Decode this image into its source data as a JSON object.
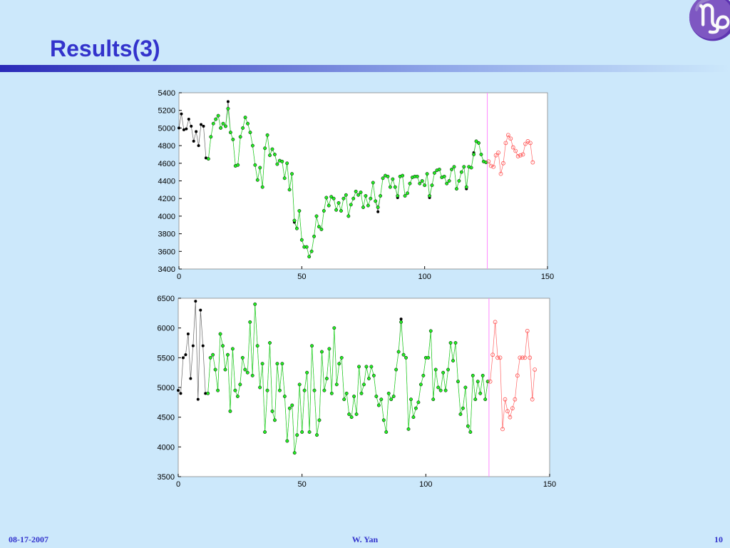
{
  "header": {
    "title": "Results(3)",
    "symbol": "♑"
  },
  "chart_data": [
    {
      "type": "line",
      "xlim": [
        0,
        150
      ],
      "xticks": [
        0,
        50,
        100,
        150
      ],
      "ylim": [
        3400,
        5400
      ],
      "yticks": [
        3400,
        3600,
        3800,
        4000,
        4200,
        4400,
        4600,
        4800,
        5000,
        5200,
        5400
      ],
      "vline": 125.5,
      "vline_color": "#ff88ff",
      "series": [
        {
          "color": "#000000",
          "marker": "dot",
          "x": [
            0,
            1,
            2,
            3,
            4,
            5,
            6,
            7,
            8,
            9,
            10,
            11,
            12,
            13,
            14,
            15,
            16,
            17,
            18,
            19,
            20,
            21,
            22,
            23,
            24,
            25,
            26,
            27,
            28,
            29,
            30,
            31,
            32,
            33,
            34,
            35,
            36,
            37,
            38,
            39,
            40,
            41,
            42,
            43,
            44,
            45,
            46,
            47,
            48,
            49,
            50,
            51,
            52,
            53,
            54,
            55,
            56,
            57,
            58,
            59,
            60,
            61,
            62,
            63,
            64,
            65,
            66,
            67,
            68,
            69,
            70,
            71,
            72,
            73,
            74,
            75,
            76,
            77,
            78,
            79,
            80,
            81,
            82,
            83,
            84,
            85,
            86,
            87,
            88,
            89,
            90,
            91,
            92,
            93,
            94,
            95,
            96,
            97,
            98,
            99,
            100,
            101,
            102,
            103,
            104,
            105,
            106,
            107,
            108,
            109,
            110,
            111,
            112,
            113,
            114,
            115,
            116,
            117,
            118,
            119,
            120,
            121,
            122,
            123,
            124,
            125
          ],
          "values": [
            5000,
            5160,
            4980,
            4990,
            5100,
            5020,
            4850,
            4960,
            4800,
            5040,
            5020,
            4660,
            4650,
            4900,
            5050,
            5100,
            5140,
            5000,
            5050,
            5020,
            5300,
            4950,
            4870,
            4570,
            4580,
            4900,
            5000,
            5120,
            5050,
            4950,
            4800,
            4580,
            4410,
            4550,
            4330,
            4770,
            4920,
            4690,
            4760,
            4700,
            4590,
            4630,
            4620,
            4430,
            4600,
            4300,
            4480,
            3930,
            3860,
            4060,
            3730,
            3650,
            3650,
            3540,
            3600,
            3770,
            4000,
            3880,
            3850,
            4060,
            4210,
            4120,
            4220,
            4200,
            4070,
            4150,
            4060,
            4200,
            4240,
            4000,
            4130,
            4200,
            4280,
            4240,
            4270,
            4100,
            4230,
            4120,
            4200,
            4380,
            4170,
            4050,
            4230,
            4430,
            4460,
            4450,
            4330,
            4420,
            4330,
            4210,
            4450,
            4460,
            4230,
            4260,
            4370,
            4440,
            4450,
            4450,
            4370,
            4400,
            4350,
            4480,
            4210,
            4350,
            4490,
            4520,
            4530,
            4440,
            4450,
            4370,
            4400,
            4530,
            4560,
            4310,
            4400,
            4500,
            4560,
            4310,
            4560,
            4550,
            4720,
            4850,
            4830,
            4700,
            4620,
            4610
          ]
        },
        {
          "color": "#22ee22",
          "marker": "ring",
          "x": [
            12,
            13,
            14,
            15,
            16,
            17,
            18,
            19,
            20,
            21,
            22,
            23,
            24,
            25,
            26,
            27,
            28,
            29,
            30,
            31,
            32,
            33,
            34,
            35,
            36,
            37,
            38,
            39,
            40,
            41,
            42,
            43,
            44,
            45,
            46,
            47,
            48,
            49,
            50,
            51,
            52,
            53,
            54,
            55,
            56,
            57,
            58,
            59,
            60,
            61,
            62,
            63,
            64,
            65,
            66,
            67,
            68,
            69,
            70,
            71,
            72,
            73,
            74,
            75,
            76,
            77,
            78,
            79,
            80,
            81,
            82,
            83,
            84,
            85,
            86,
            87,
            88,
            89,
            90,
            91,
            92,
            93,
            94,
            95,
            96,
            97,
            98,
            99,
            100,
            101,
            102,
            103,
            104,
            105,
            106,
            107,
            108,
            109,
            110,
            111,
            112,
            113,
            114,
            115,
            116,
            117,
            118,
            119,
            120,
            121,
            122,
            123,
            124,
            125
          ],
          "values": [
            4650,
            4900,
            5050,
            5100,
            5140,
            5000,
            5050,
            5020,
            5220,
            4950,
            4870,
            4570,
            4580,
            4900,
            5000,
            5120,
            5050,
            4950,
            4800,
            4580,
            4410,
            4550,
            4330,
            4770,
            4920,
            4690,
            4760,
            4700,
            4590,
            4630,
            4620,
            4430,
            4600,
            4300,
            4480,
            3950,
            3860,
            4060,
            3730,
            3650,
            3650,
            3540,
            3600,
            3770,
            4000,
            3880,
            3850,
            4060,
            4210,
            4120,
            4220,
            4200,
            4070,
            4150,
            4060,
            4200,
            4240,
            4000,
            4130,
            4200,
            4280,
            4240,
            4270,
            4100,
            4230,
            4120,
            4200,
            4380,
            4170,
            4100,
            4230,
            4430,
            4460,
            4450,
            4330,
            4420,
            4330,
            4230,
            4450,
            4460,
            4230,
            4260,
            4370,
            4440,
            4450,
            4450,
            4370,
            4400,
            4350,
            4480,
            4230,
            4350,
            4490,
            4520,
            4530,
            4440,
            4450,
            4370,
            4400,
            4530,
            4560,
            4310,
            4400,
            4500,
            4560,
            4330,
            4560,
            4550,
            4700,
            4850,
            4830,
            4700,
            4620,
            4610
          ]
        },
        {
          "color": "#ff5555",
          "marker": "open",
          "x": [
            126,
            127,
            128,
            129,
            130,
            131,
            132,
            133,
            134,
            135,
            136,
            137,
            138,
            139,
            140,
            141,
            142,
            143,
            144
          ],
          "values": [
            4620,
            4570,
            4560,
            4690,
            4720,
            4480,
            4600,
            4830,
            4920,
            4880,
            4780,
            4740,
            4680,
            4690,
            4700,
            4820,
            4850,
            4830,
            4610
          ]
        }
      ]
    },
    {
      "type": "line",
      "xlim": [
        0,
        150
      ],
      "xticks": [
        0,
        50,
        100,
        150
      ],
      "ylim": [
        3500,
        6500
      ],
      "yticks": [
        3500,
        4000,
        4500,
        5000,
        5500,
        6000,
        6500
      ],
      "vline": 125.5,
      "vline_color": "#ff88ff",
      "series": [
        {
          "color": "#000000",
          "marker": "dot",
          "x": [
            0,
            1,
            2,
            3,
            4,
            5,
            6,
            7,
            8,
            9,
            10,
            11,
            12,
            13,
            14,
            15,
            16,
            17,
            18,
            19,
            20,
            21,
            22,
            23,
            24,
            25,
            26,
            27,
            28,
            29,
            30,
            31,
            32,
            33,
            34,
            35,
            36,
            37,
            38,
            39,
            40,
            41,
            42,
            43,
            44,
            45,
            46,
            47,
            48,
            49,
            50,
            51,
            52,
            53,
            54,
            55,
            56,
            57,
            58,
            59,
            60,
            61,
            62,
            63,
            64,
            65,
            66,
            67,
            68,
            69,
            70,
            71,
            72,
            73,
            74,
            75,
            76,
            77,
            78,
            79,
            80,
            81,
            82,
            83,
            84,
            85,
            86,
            87,
            88,
            89,
            90,
            91,
            92,
            93,
            94,
            95,
            96,
            97,
            98,
            99,
            100,
            101,
            102,
            103,
            104,
            105,
            106,
            107,
            108,
            109,
            110,
            111,
            112,
            113,
            114,
            115,
            116,
            117,
            118,
            119,
            120,
            121,
            122,
            123,
            124,
            125
          ],
          "values": [
            4950,
            4900,
            5500,
            5550,
            5900,
            5150,
            5700,
            6450,
            4800,
            6300,
            5700,
            4900,
            4900,
            5500,
            5550,
            5300,
            4950,
            5900,
            5700,
            5300,
            5550,
            4600,
            5650,
            4950,
            4850,
            5050,
            5500,
            5300,
            5250,
            6100,
            5200,
            6400,
            5700,
            5000,
            5400,
            4250,
            4950,
            5750,
            4600,
            4450,
            5400,
            4950,
            5400,
            4850,
            4100,
            4650,
            4700,
            3900,
            4200,
            5050,
            4250,
            4950,
            5250,
            4250,
            5700,
            4950,
            4200,
            4450,
            5600,
            4950,
            5150,
            5650,
            4900,
            6000,
            5050,
            5400,
            5500,
            4800,
            4900,
            4550,
            4500,
            4850,
            4550,
            5350,
            4900,
            5050,
            5350,
            5150,
            5350,
            5200,
            4850,
            4700,
            4800,
            4450,
            4250,
            4900,
            4800,
            4850,
            5300,
            5600,
            6150,
            5550,
            5500,
            4300,
            4800,
            4500,
            4650,
            4750,
            5050,
            5200,
            5500,
            5500,
            5950,
            4800,
            5300,
            5000,
            4950,
            5250,
            4950,
            5300,
            5750,
            5450,
            5750,
            5100,
            4550,
            4650,
            5000,
            4350,
            4250,
            5200,
            4800,
            5100,
            4900,
            5200,
            4800,
            5100
          ]
        },
        {
          "color": "#22ee22",
          "marker": "ring",
          "x": [
            12,
            13,
            14,
            15,
            16,
            17,
            18,
            19,
            20,
            21,
            22,
            23,
            24,
            25,
            26,
            27,
            28,
            29,
            30,
            31,
            32,
            33,
            34,
            35,
            36,
            37,
            38,
            39,
            40,
            41,
            42,
            43,
            44,
            45,
            46,
            47,
            48,
            49,
            50,
            51,
            52,
            53,
            54,
            55,
            56,
            57,
            58,
            59,
            60,
            61,
            62,
            63,
            64,
            65,
            66,
            67,
            68,
            69,
            70,
            71,
            72,
            73,
            74,
            75,
            76,
            77,
            78,
            79,
            80,
            81,
            82,
            83,
            84,
            85,
            86,
            87,
            88,
            89,
            90,
            91,
            92,
            93,
            94,
            95,
            96,
            97,
            98,
            99,
            100,
            101,
            102,
            103,
            104,
            105,
            106,
            107,
            108,
            109,
            110,
            111,
            112,
            113,
            114,
            115,
            116,
            117,
            118,
            119,
            120,
            121,
            122,
            123,
            124,
            125
          ],
          "values": [
            4900,
            5500,
            5550,
            5300,
            4950,
            5900,
            5700,
            5300,
            5550,
            4600,
            5650,
            4950,
            4850,
            5050,
            5500,
            5300,
            5250,
            6100,
            5200,
            6400,
            5700,
            5000,
            5400,
            4250,
            4950,
            5750,
            4600,
            4450,
            5400,
            4950,
            5400,
            4850,
            4100,
            4650,
            4700,
            3900,
            4200,
            5050,
            4250,
            4950,
            5250,
            4250,
            5700,
            4950,
            4200,
            4450,
            5600,
            4950,
            5150,
            5650,
            4900,
            6000,
            5050,
            5400,
            5500,
            4800,
            4900,
            4550,
            4500,
            4850,
            4550,
            5350,
            4900,
            5050,
            5350,
            5150,
            5350,
            5200,
            4850,
            4700,
            4800,
            4450,
            4250,
            4900,
            4800,
            4850,
            5300,
            5600,
            6100,
            5550,
            5500,
            4300,
            4800,
            4500,
            4650,
            4750,
            5050,
            5200,
            5500,
            5500,
            5950,
            4800,
            5300,
            5000,
            4950,
            5250,
            4950,
            5300,
            5750,
            5450,
            5750,
            5100,
            4550,
            4650,
            5000,
            4350,
            4250,
            5200,
            4800,
            5100,
            4900,
            5200,
            4800,
            5100
          ]
        },
        {
          "color": "#ff5555",
          "marker": "open",
          "x": [
            126,
            127,
            128,
            129,
            130,
            131,
            132,
            133,
            134,
            135,
            136,
            137,
            138,
            139,
            140,
            141,
            142,
            143,
            144
          ],
          "values": [
            5100,
            5550,
            6100,
            5500,
            5500,
            4300,
            4800,
            4600,
            4500,
            4650,
            4800,
            5200,
            5500,
            5500,
            5500,
            5950,
            5500,
            4800,
            5300
          ]
        }
      ]
    }
  ],
  "footer": {
    "date": "08-17-2007",
    "author": "W. Yan",
    "page": "10"
  }
}
